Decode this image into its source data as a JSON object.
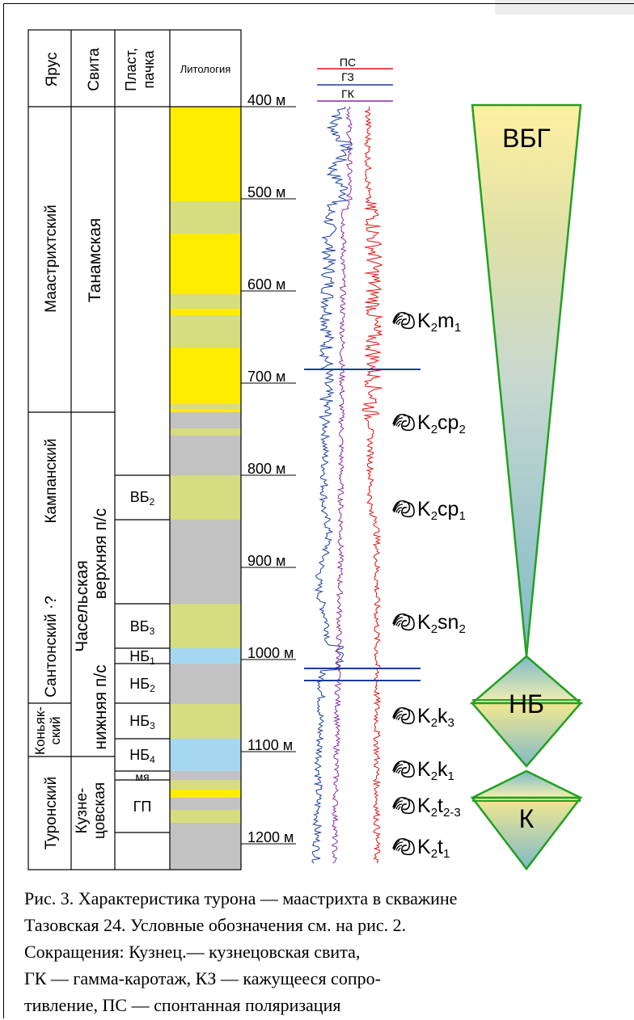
{
  "headers": {
    "stage": "Ярус",
    "suite": "Свита",
    "layer": "Пласт, пачка",
    "lithology": "Литология"
  },
  "depth_unit": "м",
  "depth_marks": [
    400,
    500,
    600,
    700,
    800,
    900,
    1000,
    1100,
    1200
  ],
  "stages": [
    "Маастрихтский",
    "Кампанский",
    "Сантонский ·?",
    "Коньяк-ский",
    "Туронский"
  ],
  "suites": [
    "Танамская",
    "Часельская",
    "верхняя п/с",
    "нижняя п/с",
    "Кузне-цовская"
  ],
  "layers": [
    "ВБ2",
    "ВБ3",
    "НБ1",
    "НБ2",
    "НБ3",
    "НБ4",
    "мя",
    "ГП"
  ],
  "log_legend": [
    "ПС",
    "ГЗ",
    "ГК"
  ],
  "log_colors": {
    "ПС": "#e01010",
    "ГЗ": "#1a3d9c",
    "ГК": "#8a2aa0"
  },
  "lithology_colors": {
    "sand": "#ffec00",
    "silt": "#d6dc80",
    "clay": "#c2c2c2",
    "shale_blue": "#a5d8f0"
  },
  "fossil_labels": [
    "K2m1",
    "K2cp2",
    "K2cp1",
    "K2sn2",
    "K2k3",
    "K2k1",
    "K2t2-3",
    "K2t1"
  ],
  "cycles": [
    "ВБГ",
    "НБ",
    "К"
  ],
  "caption": [
    "Рис. 3. Характеристика турона — маастрихта в скважине",
    "Тазовская 24. Условные обозначения см. на рис. 2.",
    "Сокращения: Кузнец.— кузнецовская свита,",
    "ГК — гамма-каротаж, КЗ — кажущееся сопро-",
    "тивление, ПС — спонтанная поляризация"
  ]
}
